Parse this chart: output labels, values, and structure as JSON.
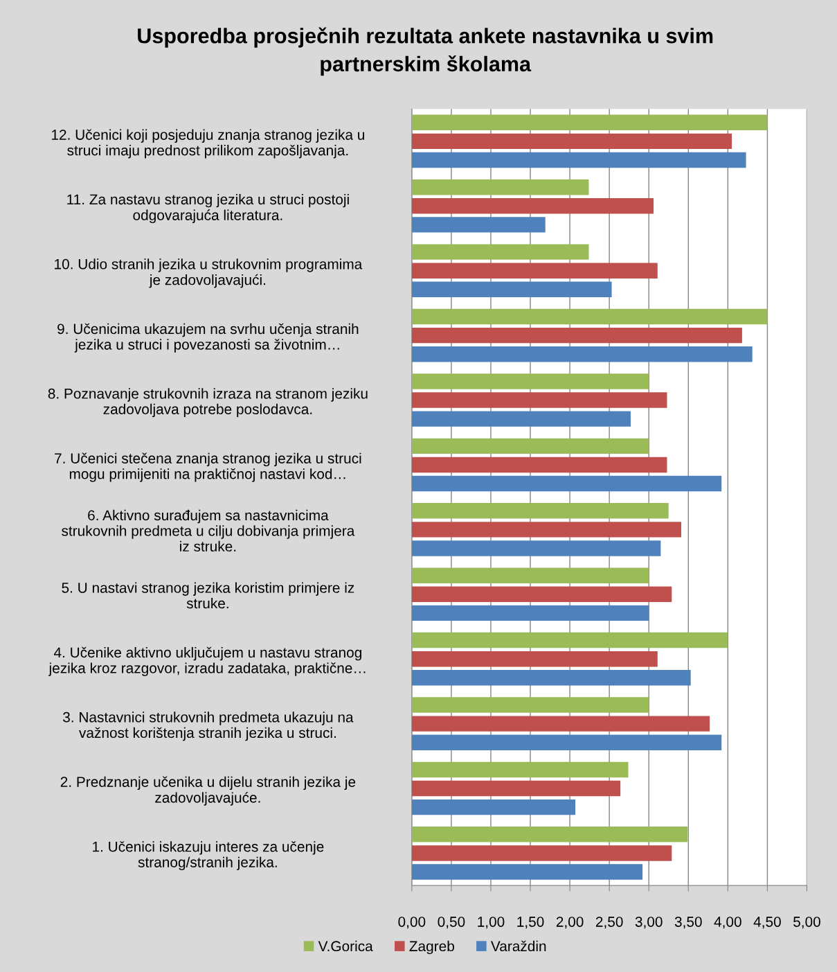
{
  "chart_data": {
    "type": "bar",
    "orientation": "horizontal",
    "title": "Usporedba prosječnih rezultata ankete nastavnika u svim\npartnerskim školama",
    "categories": [
      "12. Učenici koji posjeduju znanja stranog jezika u\nstruci imaju prednost prilikom zapošljavanja.",
      "11. Za nastavu stranog jezika u struci postoji\nodgovarajuća literatura.",
      "10. Udio stranih jezika u strukovnim programima\nje zadovoljavajući.",
      "9. Učenicima ukazujem na svrhu učenja stranih\njezika u struci i povezanosti sa životnim…",
      "8. Poznavanje strukovnih izraza na stranom jeziku\nzadovoljava potrebe poslodavca.",
      "7. Učenici stečena znanja stranog jezika u struci\nmogu primijeniti na praktičnoj nastavi kod…",
      "6. Aktivno surađujem sa nastavnicima\nstrukovnih predmeta u cilju dobivanja primjera\niz struke.",
      "5. U nastavi stranog jezika koristim primjere iz\nstruke.",
      "4. Učenike aktivno uključujem u nastavu stranog\njezika kroz razgovor, izradu zadataka, praktične…",
      "3. Nastavnici strukovnih predmeta ukazuju na\nvažnost korištenja stranih jezika u struci.",
      "2. Predznanje učenika u dijelu stranih jezika je\nzadovoljavajuće.",
      "1. Učenici iskazuju interes za učenje\nstranog/stranih jezika."
    ],
    "series": [
      {
        "name": "V.Gorica",
        "color": "#9bbb59",
        "values": [
          4.5,
          2.24,
          2.24,
          4.5,
          3.0,
          3.0,
          3.25,
          3.0,
          4.0,
          3.0,
          2.74,
          3.49
        ]
      },
      {
        "name": "Zagreb",
        "color": "#c0504d",
        "values": [
          4.05,
          3.06,
          3.11,
          4.18,
          3.23,
          3.23,
          3.41,
          3.29,
          3.11,
          3.77,
          2.64,
          3.29
        ]
      },
      {
        "name": "Varaždin",
        "color": "#4f81bd",
        "values": [
          4.23,
          1.69,
          2.53,
          4.31,
          2.77,
          3.92,
          3.15,
          3.0,
          3.53,
          3.92,
          2.07,
          2.92
        ]
      }
    ],
    "xlim": [
      0,
      5
    ],
    "xticks": [
      {
        "value": 0,
        "label": "0,00"
      },
      {
        "value": 0.5,
        "label": "0,50"
      },
      {
        "value": 1,
        "label": "1,00"
      },
      {
        "value": 1.5,
        "label": "1,50"
      },
      {
        "value": 2,
        "label": "2,00"
      },
      {
        "value": 2.5,
        "label": "2,50"
      },
      {
        "value": 3,
        "label": "3,00"
      },
      {
        "value": 3.5,
        "label": "3,50"
      },
      {
        "value": 4,
        "label": "4,00"
      },
      {
        "value": 4.5,
        "label": "4,50"
      },
      {
        "value": 5,
        "label": "5,00"
      }
    ],
    "grid": "x",
    "legend": "bottom"
  }
}
